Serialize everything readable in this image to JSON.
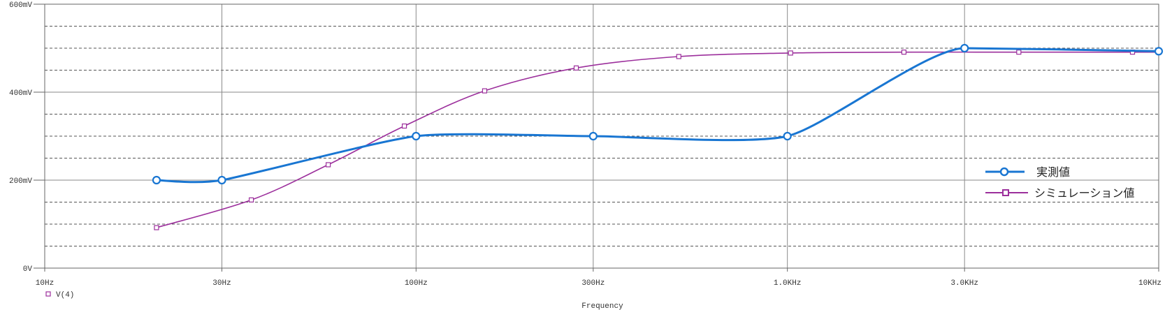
{
  "chart_data": {
    "type": "line",
    "xscale": "log",
    "xlim": [
      10,
      10000
    ],
    "ylim": [
      0,
      600
    ],
    "xlabel": "Frequency",
    "grid": true,
    "legend_position": "right",
    "xticks": [
      {
        "value": 10,
        "label": "10Hz"
      },
      {
        "value": 30,
        "label": "30Hz"
      },
      {
        "value": 100,
        "label": "100Hz"
      },
      {
        "value": 300,
        "label": "300Hz"
      },
      {
        "value": 1000,
        "label": "1.0KHz"
      },
      {
        "value": 3000,
        "label": "3.0KHz"
      },
      {
        "value": 10000,
        "label": "10KHz"
      }
    ],
    "yticks": [
      {
        "value": 600,
        "label": "600mV"
      },
      {
        "value": 400,
        "label": "400mV"
      },
      {
        "value": 200,
        "label": "200mV"
      },
      {
        "value": 0,
        "label": "0V"
      }
    ],
    "minor_grid_y": [
      50,
      100,
      150,
      250,
      300,
      350,
      450,
      500,
      550
    ],
    "series": [
      {
        "name": "実測値",
        "marker": "circle",
        "color": "#1976d2",
        "x": [
          20,
          30,
          100,
          300,
          1000,
          3000,
          10000
        ],
        "y": [
          200,
          200,
          300,
          300,
          300,
          500,
          493
        ]
      },
      {
        "name": "シミュレーション値",
        "trace_label": "V(4)",
        "marker": "square",
        "color": "#9c2f9c",
        "x": [
          20,
          36,
          58,
          93,
          153,
          270,
          510,
          1020,
          2060,
          4200,
          8500,
          10000
        ],
        "y": [
          92,
          155,
          235,
          323,
          403,
          455,
          481,
          489,
          491,
          491,
          491,
          491
        ]
      }
    ]
  },
  "colors": {
    "major_grid": "#8a8a8a",
    "minor_grid": "#555555",
    "axis": "#666666",
    "background": "#ffffff"
  }
}
